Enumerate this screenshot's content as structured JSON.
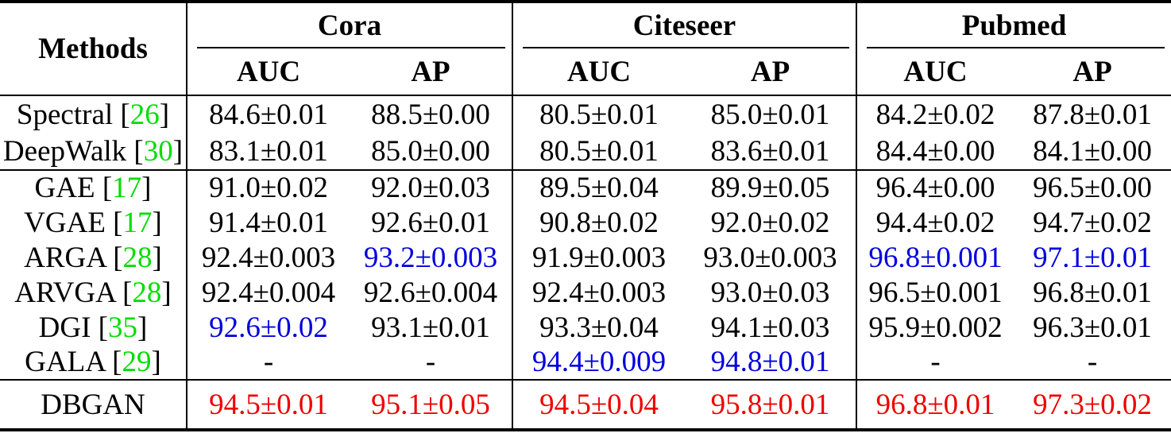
{
  "colors": {
    "best": "#ee0000",
    "second": "#0000dd",
    "citation": "#00dd00",
    "text": "#000000"
  },
  "table": {
    "methods_header": "Methods",
    "groups": [
      {
        "label": "Cora",
        "subcols": [
          "AUC",
          "AP"
        ]
      },
      {
        "label": "Citeseer",
        "subcols": [
          "AUC",
          "AP"
        ]
      },
      {
        "label": "Pubmed",
        "subcols": [
          "AUC",
          "AP"
        ]
      }
    ],
    "sections": [
      {
        "rows": [
          {
            "method": "Spectral",
            "ref": "26",
            "values": [
              {
                "v": "84.6±0.01"
              },
              {
                "v": "88.5±0.00"
              },
              {
                "v": "80.5±0.01"
              },
              {
                "v": "85.0±0.01"
              },
              {
                "v": "84.2±0.02"
              },
              {
                "v": "87.8±0.01"
              }
            ]
          },
          {
            "method": "DeepWalk",
            "ref": "30",
            "values": [
              {
                "v": "83.1±0.01"
              },
              {
                "v": "85.0±0.00"
              },
              {
                "v": "80.5±0.01"
              },
              {
                "v": "83.6±0.01"
              },
              {
                "v": "84.4±0.00"
              },
              {
                "v": "84.1±0.00"
              }
            ]
          }
        ]
      },
      {
        "rows": [
          {
            "method": "GAE",
            "ref": "17",
            "values": [
              {
                "v": "91.0±0.02"
              },
              {
                "v": "92.0±0.03"
              },
              {
                "v": "89.5±0.04"
              },
              {
                "v": "89.9±0.05"
              },
              {
                "v": "96.4±0.00"
              },
              {
                "v": "96.5±0.00"
              }
            ]
          },
          {
            "method": "VGAE",
            "ref": "17",
            "values": [
              {
                "v": "91.4±0.01"
              },
              {
                "v": "92.6±0.01"
              },
              {
                "v": "90.8±0.02"
              },
              {
                "v": "92.0±0.02"
              },
              {
                "v": "94.4±0.02"
              },
              {
                "v": "94.7±0.02"
              }
            ]
          },
          {
            "method": "ARGA",
            "ref": "28",
            "values": [
              {
                "v": "92.4±0.003"
              },
              {
                "v": "93.2±0.003",
                "c": "second"
              },
              {
                "v": "91.9±0.003"
              },
              {
                "v": "93.0±0.003"
              },
              {
                "v": "96.8±0.001",
                "c": "second"
              },
              {
                "v": "97.1±0.01",
                "c": "second"
              }
            ]
          },
          {
            "method": "ARVGA",
            "ref": "28",
            "values": [
              {
                "v": "92.4±0.004"
              },
              {
                "v": "92.6±0.004"
              },
              {
                "v": "92.4±0.003"
              },
              {
                "v": "93.0±0.03"
              },
              {
                "v": "96.5±0.001"
              },
              {
                "v": "96.8±0.01"
              }
            ]
          },
          {
            "method": "DGI",
            "ref": "35",
            "values": [
              {
                "v": "92.6±0.02",
                "c": "second"
              },
              {
                "v": "93.1±0.01"
              },
              {
                "v": "93.3±0.04"
              },
              {
                "v": "94.1±0.03"
              },
              {
                "v": "95.9±0.002"
              },
              {
                "v": "96.3±0.01"
              }
            ]
          },
          {
            "method": "GALA",
            "ref": "29",
            "values": [
              {
                "v": "-"
              },
              {
                "v": "-"
              },
              {
                "v": "94.4±0.009",
                "c": "second"
              },
              {
                "v": "94.8±0.01",
                "c": "second"
              },
              {
                "v": "-"
              },
              {
                "v": "-"
              }
            ]
          }
        ]
      },
      {
        "rows": [
          {
            "method": "DBGAN",
            "ref": null,
            "values": [
              {
                "v": "94.5±0.01",
                "c": "best"
              },
              {
                "v": "95.1±0.05",
                "c": "best"
              },
              {
                "v": "94.5±0.04",
                "c": "best"
              },
              {
                "v": "95.8±0.01",
                "c": "best"
              },
              {
                "v": "96.8±0.01",
                "c": "best"
              },
              {
                "v": "97.3±0.02",
                "c": "best"
              }
            ]
          }
        ]
      }
    ]
  }
}
